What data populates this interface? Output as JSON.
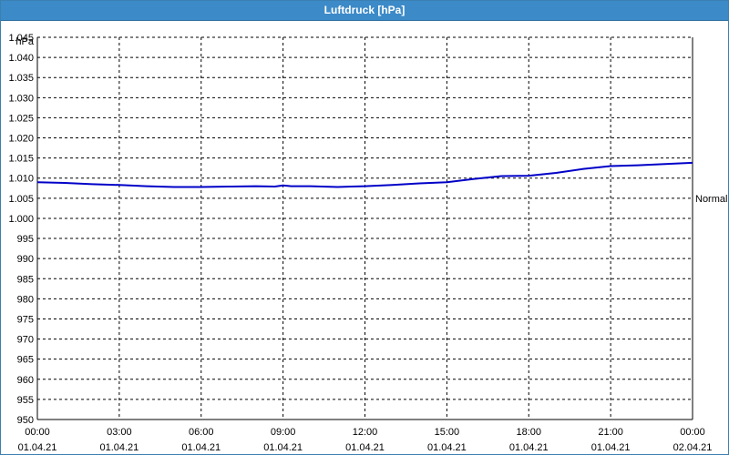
{
  "window": {
    "title": "Luftdruck [hPa]"
  },
  "chart_data": {
    "type": "line",
    "title": "Luftdruck [hPa]",
    "ylabel": "hPa",
    "xlabel": "",
    "ylim": [
      950,
      1045
    ],
    "y_ticks": [
      950,
      955,
      960,
      965,
      970,
      975,
      980,
      985,
      990,
      995,
      1000,
      1005,
      1010,
      1015,
      1020,
      1025,
      1030,
      1035,
      1040,
      1045
    ],
    "y_tick_labels": [
      "950",
      "955",
      "960",
      "965",
      "970",
      "975",
      "980",
      "985",
      "990",
      "995",
      "1.000",
      "1.005",
      "1.010",
      "1.015",
      "1.020",
      "1.025",
      "1.030",
      "1.035",
      "1.040",
      "1.045"
    ],
    "x_ticks": [
      {
        "time": "00:00",
        "date": "01.04.21"
      },
      {
        "time": "03:00",
        "date": "01.04.21"
      },
      {
        "time": "06:00",
        "date": "01.04.21"
      },
      {
        "time": "09:00",
        "date": "01.04.21"
      },
      {
        "time": "12:00",
        "date": "01.04.21"
      },
      {
        "time": "15:00",
        "date": "01.04.21"
      },
      {
        "time": "18:00",
        "date": "01.04.21"
      },
      {
        "time": "21:00",
        "date": "01.04.21"
      },
      {
        "time": "00:00",
        "date": "02.04.21"
      }
    ],
    "x_hours": [
      0,
      1,
      2,
      3,
      4,
      5,
      6,
      7,
      8,
      8.7,
      9,
      9.3,
      10,
      11,
      12,
      13,
      14,
      15,
      16,
      17,
      18,
      19,
      20,
      21,
      22,
      23,
      24
    ],
    "series": [
      {
        "color": "#0000c8",
        "values": [
          1009.0,
          1008.8,
          1008.5,
          1008.3,
          1008.0,
          1007.8,
          1007.8,
          1007.9,
          1008.0,
          1007.9,
          1008.2,
          1008.0,
          1008.0,
          1007.8,
          1008.0,
          1008.3,
          1008.7,
          1009.0,
          1009.8,
          1010.5,
          1010.6,
          1011.3,
          1012.3,
          1013.0,
          1013.2,
          1013.5,
          1013.8
        ]
      }
    ],
    "reference_line": {
      "label": "Normal",
      "value": 1005
    },
    "grid": true,
    "legend": "none"
  }
}
